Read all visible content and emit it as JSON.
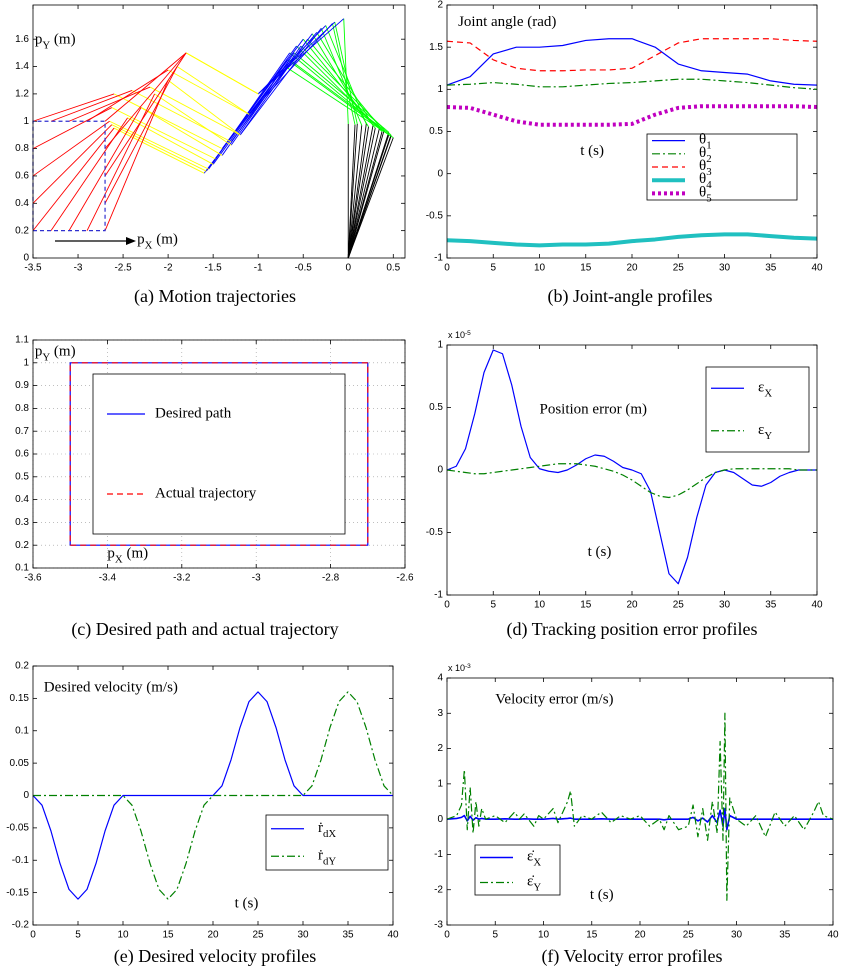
{
  "chart_data": [
    {
      "type": "linkage",
      "caption": "(a) Motion trajectories",
      "xlabel": [
        "p",
        "X",
        " (m)"
      ],
      "ylabel": [
        "p",
        "Y",
        " (m)"
      ],
      "xlim": [
        -3.5,
        0.63
      ],
      "ylim": [
        0,
        1.85
      ],
      "xticks": [
        -3.5,
        -3,
        -2.5,
        -2,
        -1.5,
        -1,
        -0.5,
        0,
        0.5
      ],
      "yticks": [
        0,
        0.2,
        0.4,
        0.6,
        0.8,
        1,
        1.2,
        1.4,
        1.6
      ],
      "grid": false,
      "link_colors": [
        "#000000",
        "#00ff00",
        "#0000ff",
        "#ffff00",
        "#ff0000"
      ],
      "path_color": "#3030d0",
      "joints": [
        {
          "x": [
            0,
            0,
            0,
            0,
            0,
            0,
            0,
            0,
            0,
            0,
            0,
            0,
            0,
            0,
            0,
            0
          ],
          "y": [
            0,
            0,
            0,
            0,
            0,
            0,
            0,
            0,
            0,
            0,
            0,
            0,
            0,
            0,
            0,
            0
          ]
        },
        {
          "x": [
            0.5,
            0.475,
            0.45,
            0.4,
            0.35,
            0.275,
            0.2,
            0.1,
            0,
            0.075,
            0.15,
            0.225,
            0.3,
            0.375,
            0.45,
            0.475
          ],
          "y": [
            0.88,
            0.9,
            0.92,
            0.94,
            0.96,
            0.97,
            0.98,
            0.98,
            0.98,
            0.975,
            0.97,
            0.96,
            0.95,
            0.925,
            0.9,
            0.89
          ]
        },
        {
          "x": [
            -0.7,
            -0.65,
            -0.6,
            -0.525,
            -0.45,
            -0.35,
            -0.25,
            -0.15,
            -0.05,
            -0.175,
            -0.3,
            -0.4,
            -0.5,
            -0.575,
            -0.65,
            -0.675
          ],
          "y": [
            1.4,
            1.45,
            1.5,
            1.55,
            1.6,
            1.65,
            1.7,
            1.725,
            1.75,
            1.715,
            1.68,
            1.64,
            1.6,
            1.55,
            1.5,
            1.45
          ]
        },
        {
          "x": [
            -1.6,
            -1.5,
            -1.4,
            -1.3,
            -1.2,
            -1.1,
            -1,
            -1,
            -1,
            -1.1,
            -1.2,
            -1.3,
            -1.4,
            -1.475,
            -1.55,
            -1.575
          ],
          "y": [
            0.62,
            0.685,
            0.75,
            0.825,
            0.9,
            1.05,
            1.2,
            1.2,
            1.2,
            1.05,
            0.9,
            0.85,
            0.8,
            0.725,
            0.65,
            0.635
          ]
        },
        {
          "x": [
            -2.6,
            -2.45,
            -2.3,
            -2.15,
            -2,
            -1.9,
            -1.8,
            -1.8,
            -1.8,
            -2,
            -2.2,
            -2.4,
            -2.6,
            -2.625,
            -2.65,
            -2.625
          ],
          "y": [
            0.95,
            1.025,
            1.1,
            1.2,
            1.3,
            1.4,
            1.5,
            1.5,
            1.5,
            1.375,
            1.25,
            1.225,
            1.2,
            1.1,
            1.0,
            0.975
          ]
        },
        {
          "x": [
            -3.5,
            -3.3,
            -3.1,
            -2.9,
            -2.7,
            -2.7,
            -2.7,
            -2.7,
            -2.7,
            -2.9,
            -3.1,
            -3.3,
            -3.5,
            -3.5,
            -3.5,
            -3.5
          ],
          "y": [
            0.2,
            0.2,
            0.2,
            0.2,
            0.2,
            0.4,
            0.6,
            0.8,
            1,
            1,
            1,
            1,
            1,
            0.8,
            0.6,
            0.4
          ]
        }
      ]
    },
    {
      "type": "line",
      "caption": "(b) Joint-angle profiles",
      "title": "Joint angle (rad)",
      "xlabel": "t (s)",
      "xlim": [
        0,
        40
      ],
      "ylim": [
        -1,
        2
      ],
      "xticks": [
        0,
        5,
        10,
        15,
        20,
        25,
        30,
        35,
        40
      ],
      "yticks": [
        -1,
        -0.5,
        0,
        0.5,
        1,
        1.5,
        2
      ],
      "grid": false,
      "legend": "lower right",
      "x": [
        0,
        2.5,
        5,
        7.5,
        10,
        12.5,
        15,
        17.5,
        20,
        22.5,
        25,
        27.5,
        30,
        32.5,
        35,
        37.5,
        40
      ],
      "series": [
        {
          "name": [
            "θ",
            "1"
          ],
          "color": "#0000ff",
          "style": "solid",
          "width": 1.2,
          "values": [
            1.05,
            1.15,
            1.42,
            1.5,
            1.5,
            1.52,
            1.58,
            1.6,
            1.6,
            1.5,
            1.3,
            1.22,
            1.2,
            1.18,
            1.1,
            1.06,
            1.05
          ]
        },
        {
          "name": [
            "θ",
            "2"
          ],
          "color": "#008000",
          "style": "dashdot",
          "width": 1.2,
          "values": [
            1.05,
            1.06,
            1.08,
            1.06,
            1.03,
            1.03,
            1.05,
            1.07,
            1.08,
            1.1,
            1.12,
            1.12,
            1.1,
            1.08,
            1.05,
            1.02,
            1.0
          ]
        },
        {
          "name": [
            "θ",
            "3"
          ],
          "color": "#ff0000",
          "style": "dashed",
          "width": 1.2,
          "values": [
            1.57,
            1.55,
            1.35,
            1.25,
            1.22,
            1.22,
            1.23,
            1.23,
            1.25,
            1.4,
            1.55,
            1.6,
            1.6,
            1.6,
            1.6,
            1.58,
            1.57
          ]
        },
        {
          "name": [
            "θ",
            "4"
          ],
          "color": "#20c0c0",
          "style": "solid",
          "width": 4,
          "values": [
            -0.79,
            -0.8,
            -0.82,
            -0.84,
            -0.85,
            -0.84,
            -0.84,
            -0.83,
            -0.8,
            -0.78,
            -0.75,
            -0.73,
            -0.72,
            -0.72,
            -0.74,
            -0.76,
            -0.77
          ]
        },
        {
          "name": [
            "θ",
            "5"
          ],
          "color": "#c000c0",
          "style": "dotted",
          "width": 4,
          "values": [
            0.79,
            0.78,
            0.7,
            0.62,
            0.58,
            0.58,
            0.58,
            0.58,
            0.59,
            0.7,
            0.78,
            0.8,
            0.8,
            0.8,
            0.8,
            0.8,
            0.79
          ]
        }
      ]
    },
    {
      "type": "line",
      "caption": "(c) Desired path and actual trajectory",
      "xlabel": [
        "p",
        "X",
        " (m)"
      ],
      "ylabel": [
        "p",
        "Y",
        " (m)"
      ],
      "xlim": [
        -3.6,
        -2.6
      ],
      "ylim": [
        0.1,
        1.1
      ],
      "xticks": [
        -3.6,
        -3.4,
        -3.2,
        -3,
        -2.8,
        -2.6
      ],
      "yticks": [
        0.1,
        0.2,
        0.3,
        0.4,
        0.5,
        0.6,
        0.7,
        0.8,
        0.9,
        1,
        1.1
      ],
      "grid": true,
      "legend": "center",
      "series": [
        {
          "name": "Desired path",
          "color": "#0000ff",
          "style": "solid",
          "width": 1.2,
          "x": [
            -3.5,
            -2.7,
            -2.7,
            -3.5,
            -3.5
          ],
          "values": [
            0.2,
            0.2,
            1,
            1,
            0.2
          ]
        },
        {
          "name": "Actual trajectory",
          "color": "#ff0000",
          "style": "dashed",
          "width": 1.2,
          "x": [
            -3.5,
            -2.7,
            -2.7,
            -3.5,
            -3.5
          ],
          "values": [
            0.2,
            0.2,
            1,
            1,
            0.2
          ]
        }
      ]
    },
    {
      "type": "line",
      "caption": "(d) Tracking position error profiles",
      "title": "Position error (m)",
      "xlabel": "t (s)",
      "y_multiplier": [
        "x 10",
        "-5"
      ],
      "xlim": [
        0,
        40
      ],
      "ylim": [
        -1,
        1
      ],
      "xticks": [
        0,
        5,
        10,
        15,
        20,
        25,
        30,
        35,
        40
      ],
      "yticks": [
        -1,
        -0.5,
        0,
        0.5,
        1
      ],
      "grid": false,
      "legend": "upper right",
      "x": [
        0,
        1,
        2,
        3,
        4,
        5,
        6,
        7,
        8,
        9,
        10,
        11,
        12,
        13,
        14,
        15,
        16,
        17,
        18,
        19,
        20,
        21,
        22,
        23,
        24,
        25,
        26,
        27,
        28,
        29,
        30,
        31,
        32,
        33,
        34,
        35,
        36,
        37,
        38,
        39,
        40
      ],
      "series": [
        {
          "name": [
            "ε",
            "X"
          ],
          "color": "#0000ff",
          "style": "solid",
          "width": 1.2,
          "values": [
            0,
            0.03,
            0.17,
            0.45,
            0.78,
            0.96,
            0.93,
            0.68,
            0.35,
            0.1,
            0.01,
            -0.01,
            -0.02,
            0,
            0.04,
            0.09,
            0.12,
            0.11,
            0.07,
            0.02,
            0,
            -0.03,
            -0.17,
            -0.5,
            -0.83,
            -0.91,
            -0.7,
            -0.38,
            -0.12,
            -0.02,
            0,
            -0.02,
            -0.07,
            -0.12,
            -0.13,
            -0.1,
            -0.05,
            -0.02,
            0,
            0,
            0
          ]
        },
        {
          "name": [
            "ε",
            "Y"
          ],
          "color": "#008000",
          "style": "dashdot",
          "width": 1.2,
          "values": [
            0,
            -0.01,
            -0.02,
            -0.03,
            -0.03,
            -0.02,
            -0.01,
            0,
            0.01,
            0.02,
            0.03,
            0.04,
            0.05,
            0.05,
            0.05,
            0.04,
            0.03,
            0.01,
            -0.01,
            -0.04,
            -0.08,
            -0.13,
            -0.18,
            -0.21,
            -0.22,
            -0.2,
            -0.16,
            -0.11,
            -0.06,
            -0.02,
            0,
            0.01,
            0.01,
            0.01,
            0.01,
            0.01,
            0.01,
            0.01,
            0,
            0,
            0
          ]
        }
      ]
    },
    {
      "type": "line",
      "caption": "(e) Desired velocity profiles",
      "title": "Desired velocity (m/s)",
      "xlabel": "t (s)",
      "xlim": [
        0,
        40
      ],
      "ylim": [
        -0.2,
        0.2
      ],
      "xticks": [
        0,
        5,
        10,
        15,
        20,
        25,
        30,
        35,
        40
      ],
      "yticks": [
        -0.2,
        -0.15,
        -0.1,
        -0.05,
        0,
        0.05,
        0.1,
        0.15,
        0.2
      ],
      "grid": false,
      "legend": "lower right",
      "x": [
        0,
        1,
        2,
        3,
        4,
        5,
        6,
        7,
        8,
        9,
        10,
        11,
        12,
        13,
        14,
        15,
        16,
        17,
        18,
        19,
        20,
        21,
        22,
        23,
        24,
        25,
        26,
        27,
        28,
        29,
        30,
        31,
        32,
        33,
        34,
        35,
        36,
        37,
        38,
        39,
        40
      ],
      "series": [
        {
          "name": [
            "ṙ",
            "dX"
          ],
          "color": "#0000ff",
          "style": "solid",
          "width": 1.2,
          "values": [
            0,
            -0.015,
            -0.055,
            -0.105,
            -0.145,
            -0.16,
            -0.145,
            -0.105,
            -0.055,
            -0.015,
            0,
            0,
            0,
            0,
            0,
            0,
            0,
            0,
            0,
            0,
            0,
            0.015,
            0.055,
            0.105,
            0.145,
            0.16,
            0.145,
            0.105,
            0.055,
            0.015,
            0,
            0,
            0,
            0,
            0,
            0,
            0,
            0,
            0,
            0,
            0
          ]
        },
        {
          "name": [
            "ṙ",
            "dY"
          ],
          "color": "#008000",
          "style": "dashdot",
          "width": 1.2,
          "values": [
            0,
            0,
            0,
            0,
            0,
            0,
            0,
            0,
            0,
            0,
            0,
            -0.015,
            -0.055,
            -0.105,
            -0.145,
            -0.16,
            -0.145,
            -0.105,
            -0.055,
            -0.015,
            0,
            0,
            0,
            0,
            0,
            0,
            0,
            0,
            0,
            0,
            0,
            0.015,
            0.055,
            0.105,
            0.145,
            0.16,
            0.145,
            0.105,
            0.055,
            0.015,
            0
          ]
        }
      ]
    },
    {
      "type": "line",
      "caption": "(f) Velocity error profiles",
      "title": "Velocity error (m/s)",
      "xlabel": "t (s)",
      "y_multiplier": [
        "x 10",
        "-3"
      ],
      "xlim": [
        0,
        40
      ],
      "ylim": [
        -3,
        4
      ],
      "xticks": [
        0,
        5,
        10,
        15,
        20,
        25,
        30,
        35,
        40
      ],
      "yticks": [
        -3,
        -2,
        -1,
        0,
        1,
        2,
        3,
        4
      ],
      "grid": false,
      "legend": "lower left",
      "x": [
        0,
        1,
        1.5,
        1.8,
        2.1,
        2.4,
        2.7,
        3,
        3.3,
        3.6,
        4,
        5,
        6,
        7,
        7.5,
        8,
        9,
        9.5,
        10,
        11,
        11.5,
        12,
        12.5,
        12.8,
        13.2,
        14,
        15,
        16,
        17,
        18,
        19,
        20,
        21,
        22,
        22.5,
        23,
        24,
        25,
        25.5,
        26,
        26.5,
        27,
        27.5,
        28,
        28.3,
        28.6,
        28.8,
        29,
        29.3,
        30,
        31,
        32,
        33,
        34,
        35,
        36,
        37,
        38,
        38.5,
        39,
        40
      ],
      "series": [
        {
          "name": [
            "ε̇",
            "X"
          ],
          "color": "#0000ff",
          "style": "solid",
          "width": 1.6,
          "values": [
            0,
            0.02,
            0.05,
            0.1,
            -0.05,
            0.08,
            -0.03,
            0.04,
            0,
            0.02,
            0,
            0,
            0.01,
            0,
            0,
            0.01,
            0,
            0,
            0,
            0.02,
            0,
            0.01,
            0.02,
            0.03,
            0,
            0,
            0,
            0.01,
            0,
            0,
            0,
            0,
            0,
            0,
            -0.02,
            0,
            0,
            0,
            0.05,
            -0.05,
            0.03,
            -0.08,
            0.1,
            -0.1,
            0.25,
            -0.2,
            0.3,
            -0.3,
            0.1,
            0,
            0,
            0,
            0,
            0,
            0,
            0,
            0,
            0,
            0,
            0,
            0
          ]
        },
        {
          "name": [
            "ε̇",
            "Y"
          ],
          "color": "#008000",
          "style": "dashdot",
          "width": 1.2,
          "values": [
            0,
            0.1,
            0.4,
            1.4,
            -0.3,
            0.9,
            -0.4,
            0.5,
            -0.2,
            0.3,
            0,
            0.1,
            -0.1,
            0.2,
            0,
            0.15,
            -0.2,
            0.1,
            0,
            0.3,
            -0.1,
            0.2,
            0.5,
            0.8,
            -0.2,
            0.1,
            0,
            0.2,
            -0.1,
            0.1,
            0,
            0.1,
            -0.2,
            0,
            -0.3,
            0.1,
            -0.3,
            -0.2,
            0.4,
            -0.5,
            0.3,
            -0.6,
            0.5,
            -0.4,
            2.2,
            -0.6,
            3.0,
            -2.3,
            0.6,
            0,
            -0.2,
            0.1,
            -0.5,
            0.2,
            -0.2,
            0.1,
            -0.3,
            0.2,
            0.5,
            0.1,
            0
          ]
        }
      ]
    }
  ]
}
